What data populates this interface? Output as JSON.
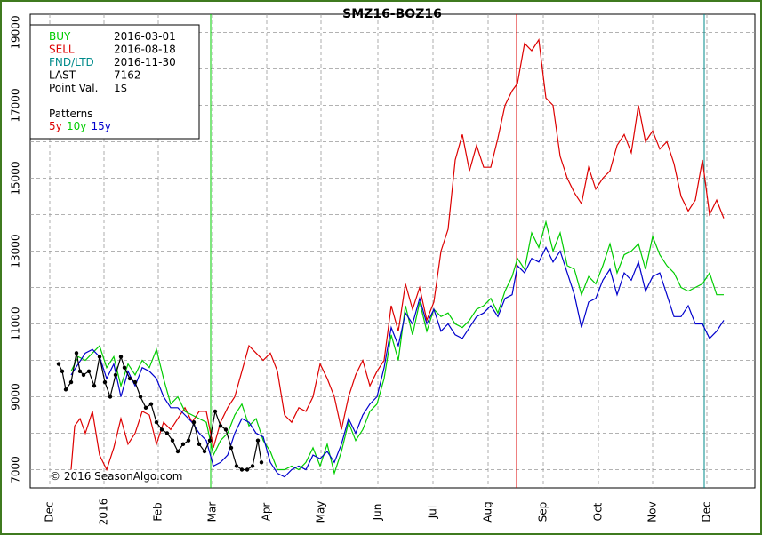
{
  "chart_data": {
    "type": "line",
    "title": "SMZ16-BOZ16",
    "xlabel": "",
    "ylabel": "",
    "ylim": [
      6500,
      19500
    ],
    "y_ticks": [
      7000,
      9000,
      11000,
      13000,
      15000,
      17000,
      19000
    ],
    "x_month_labels": [
      "Dec",
      "2016",
      "Feb",
      "Mar",
      "Apr",
      "May",
      "Jun",
      "Jul",
      "Aug",
      "Sep",
      "Oct",
      "Nov",
      "Dec"
    ],
    "grid": true,
    "info_box": {
      "rows": [
        {
          "label": "BUY",
          "value": "2016-03-01",
          "color": "#00cc00"
        },
        {
          "label": "SELL",
          "value": "2016-08-18",
          "color": "#dd0000"
        },
        {
          "label": "FND/LTD",
          "value": "2016-11-30",
          "color": "#008b8b"
        },
        {
          "label": "LAST",
          "value": "7162",
          "color": "#000000"
        },
        {
          "label": "Point Val.",
          "value": "1$",
          "color": "#000000"
        }
      ],
      "patterns_label": "Patterns",
      "patterns": [
        {
          "label": "5y",
          "color": "#dd0000"
        },
        {
          "label": "10y",
          "color": "#00cc00"
        },
        {
          "label": "15y",
          "color": "#0000cc"
        }
      ]
    },
    "markers": [
      {
        "name": "BUY",
        "x": 237,
        "color": "#00cc00"
      },
      {
        "name": "SELL",
        "x": 581,
        "color": "#dd0000"
      },
      {
        "name": "FND/LTD",
        "x": 792,
        "color": "#008b8b"
      }
    ],
    "series": [
      {
        "name": "5y",
        "color": "#dd0000",
        "x": [
          80,
          84,
          90,
          96,
          104,
          112,
          120,
          128,
          136,
          144,
          152,
          160,
          168,
          176,
          184,
          192,
          200,
          208,
          216,
          224,
          232,
          240,
          248,
          256,
          264,
          272,
          280,
          288,
          296,
          304,
          312,
          320,
          328,
          336,
          344,
          352,
          360,
          368,
          376,
          384,
          392,
          400,
          408,
          416,
          424,
          432,
          440,
          448,
          456,
          464,
          472,
          480,
          488,
          496,
          504,
          512,
          520,
          528,
          536,
          544,
          552,
          560,
          568,
          576,
          582,
          590,
          598,
          606,
          614,
          622,
          630,
          638,
          646,
          654,
          662,
          670,
          678,
          686,
          694,
          702,
          710,
          718,
          726,
          734,
          742,
          750,
          758,
          766,
          774,
          782,
          790,
          798,
          806,
          814
        ],
        "y": [
          7000,
          8200,
          8400,
          8000,
          8600,
          7400,
          7000,
          7600,
          8400,
          7700,
          8000,
          8600,
          8500,
          7700,
          8300,
          8100,
          8400,
          8700,
          8300,
          8600,
          8600,
          7600,
          8300,
          8700,
          9000,
          9700,
          10400,
          10200,
          10000,
          10200,
          9700,
          8500,
          8300,
          8700,
          8600,
          9000,
          9900,
          9500,
          9000,
          8100,
          9000,
          9600,
          10000,
          9300,
          9700,
          10000,
          11500,
          10800,
          12100,
          11400,
          12000,
          11100,
          11600,
          13000,
          13600,
          15500,
          16200,
          15200,
          15900,
          15300,
          15300,
          16100,
          17000,
          17400,
          17600,
          18700,
          18500,
          18800,
          17200,
          17000,
          15600,
          15000,
          14600,
          14300,
          15300,
          14700,
          15000,
          15200,
          15900,
          16200,
          15700,
          17000,
          16000,
          16300,
          15800,
          16000,
          15400,
          14500,
          14100,
          14400,
          15500,
          14000,
          14400,
          13900
        ]
      },
      {
        "name": "10y",
        "color": "#00cc00",
        "x": [
          80,
          88,
          96,
          104,
          112,
          120,
          128,
          136,
          144,
          152,
          160,
          168,
          176,
          184,
          192,
          200,
          208,
          216,
          224,
          232,
          240,
          248,
          256,
          264,
          272,
          280,
          288,
          296,
          304,
          312,
          320,
          328,
          336,
          344,
          352,
          360,
          368,
          376,
          384,
          392,
          400,
          408,
          416,
          424,
          432,
          440,
          448,
          456,
          464,
          472,
          480,
          488,
          496,
          504,
          512,
          520,
          528,
          536,
          544,
          552,
          560,
          568,
          576,
          582,
          590,
          598,
          606,
          614,
          622,
          630,
          638,
          646,
          654,
          662,
          670,
          678,
          686,
          694,
          702,
          710,
          718,
          726,
          734,
          742,
          750,
          758,
          766,
          774,
          782,
          790,
          798,
          806,
          814
        ],
        "y": [
          9700,
          10100,
          10000,
          10200,
          10400,
          9800,
          10100,
          9300,
          9900,
          9600,
          10000,
          9800,
          10300,
          9500,
          8800,
          9000,
          8600,
          8500,
          8400,
          8300,
          7400,
          7800,
          8000,
          8500,
          8800,
          8200,
          8400,
          7800,
          7500,
          7000,
          7000,
          7100,
          7000,
          7200,
          7600,
          7100,
          7700,
          6900,
          7500,
          8300,
          7800,
          8100,
          8600,
          8800,
          9500,
          10700,
          10000,
          11500,
          10700,
          11600,
          10800,
          11400,
          11200,
          11300,
          11000,
          10900,
          11100,
          11400,
          11500,
          11700,
          11300,
          11900,
          12300,
          12800,
          12500,
          13500,
          13100,
          13800,
          13000,
          13500,
          12600,
          12500,
          11800,
          12300,
          12100,
          12600,
          13200,
          12400,
          12900,
          13000,
          13200,
          12500,
          13400,
          12900,
          12600,
          12400,
          12000,
          11900,
          12000,
          12100,
          12400,
          11800,
          11800
        ]
      },
      {
        "name": "15y",
        "color": "#0000cc",
        "x": [
          80,
          88,
          96,
          104,
          112,
          120,
          128,
          136,
          144,
          152,
          160,
          168,
          176,
          184,
          192,
          200,
          208,
          216,
          224,
          232,
          240,
          248,
          256,
          264,
          272,
          280,
          288,
          296,
          304,
          312,
          320,
          328,
          336,
          344,
          352,
          360,
          368,
          376,
          384,
          392,
          400,
          408,
          416,
          424,
          432,
          440,
          448,
          456,
          464,
          472,
          480,
          488,
          496,
          504,
          512,
          520,
          528,
          536,
          544,
          552,
          560,
          568,
          576,
          582,
          590,
          598,
          606,
          614,
          622,
          630,
          638,
          646,
          654,
          662,
          670,
          678,
          686,
          694,
          702,
          710,
          718,
          726,
          734,
          742,
          750,
          758,
          766,
          774,
          782,
          790,
          798,
          806,
          814
        ],
        "y": [
          9600,
          9900,
          10200,
          10300,
          10100,
          9500,
          9900,
          9000,
          9700,
          9300,
          9800,
          9700,
          9500,
          9000,
          8700,
          8700,
          8500,
          8300,
          8000,
          7800,
          7100,
          7200,
          7400,
          8000,
          8400,
          8300,
          8000,
          7900,
          7200,
          6900,
          6800,
          7000,
          7100,
          7000,
          7400,
          7300,
          7500,
          7200,
          7700,
          8400,
          8000,
          8500,
          8800,
          9000,
          9800,
          10900,
          10400,
          11300,
          11000,
          11700,
          11000,
          11400,
          10800,
          11000,
          10700,
          10600,
          10900,
          11200,
          11300,
          11500,
          11200,
          11700,
          11800,
          12600,
          12400,
          12800,
          12700,
          13100,
          12700,
          13000,
          12400,
          11800,
          10900,
          11600,
          11700,
          12200,
          12500,
          11800,
          12400,
          12200,
          12700,
          11900,
          12300,
          12400,
          11800,
          11200,
          11200,
          11500,
          11000,
          11000,
          10600,
          10800,
          11100
        ]
      },
      {
        "name": "actual",
        "color": "#000000",
        "x": [
          66,
          70,
          74,
          80,
          86,
          90,
          94,
          100,
          106,
          112,
          118,
          124,
          130,
          136,
          140,
          146,
          152,
          158,
          164,
          170,
          176,
          182,
          188,
          194,
          200,
          206,
          212,
          218,
          224,
          230,
          236,
          242,
          248,
          254,
          260,
          266,
          272,
          278,
          284,
          290,
          294
        ],
        "y": [
          9900,
          9700,
          9200,
          9400,
          10200,
          9700,
          9600,
          9700,
          9300,
          10100,
          9400,
          9000,
          9600,
          10100,
          9800,
          9500,
          9400,
          9000,
          8700,
          8800,
          8300,
          8100,
          8000,
          7800,
          7500,
          7700,
          7800,
          8300,
          7700,
          7500,
          7800,
          8600,
          8200,
          8100,
          7600,
          7100,
          7000,
          7000,
          7100,
          7800,
          7200
        ]
      }
    ],
    "copyright": "© 2016 SeasonAlgo.com"
  }
}
